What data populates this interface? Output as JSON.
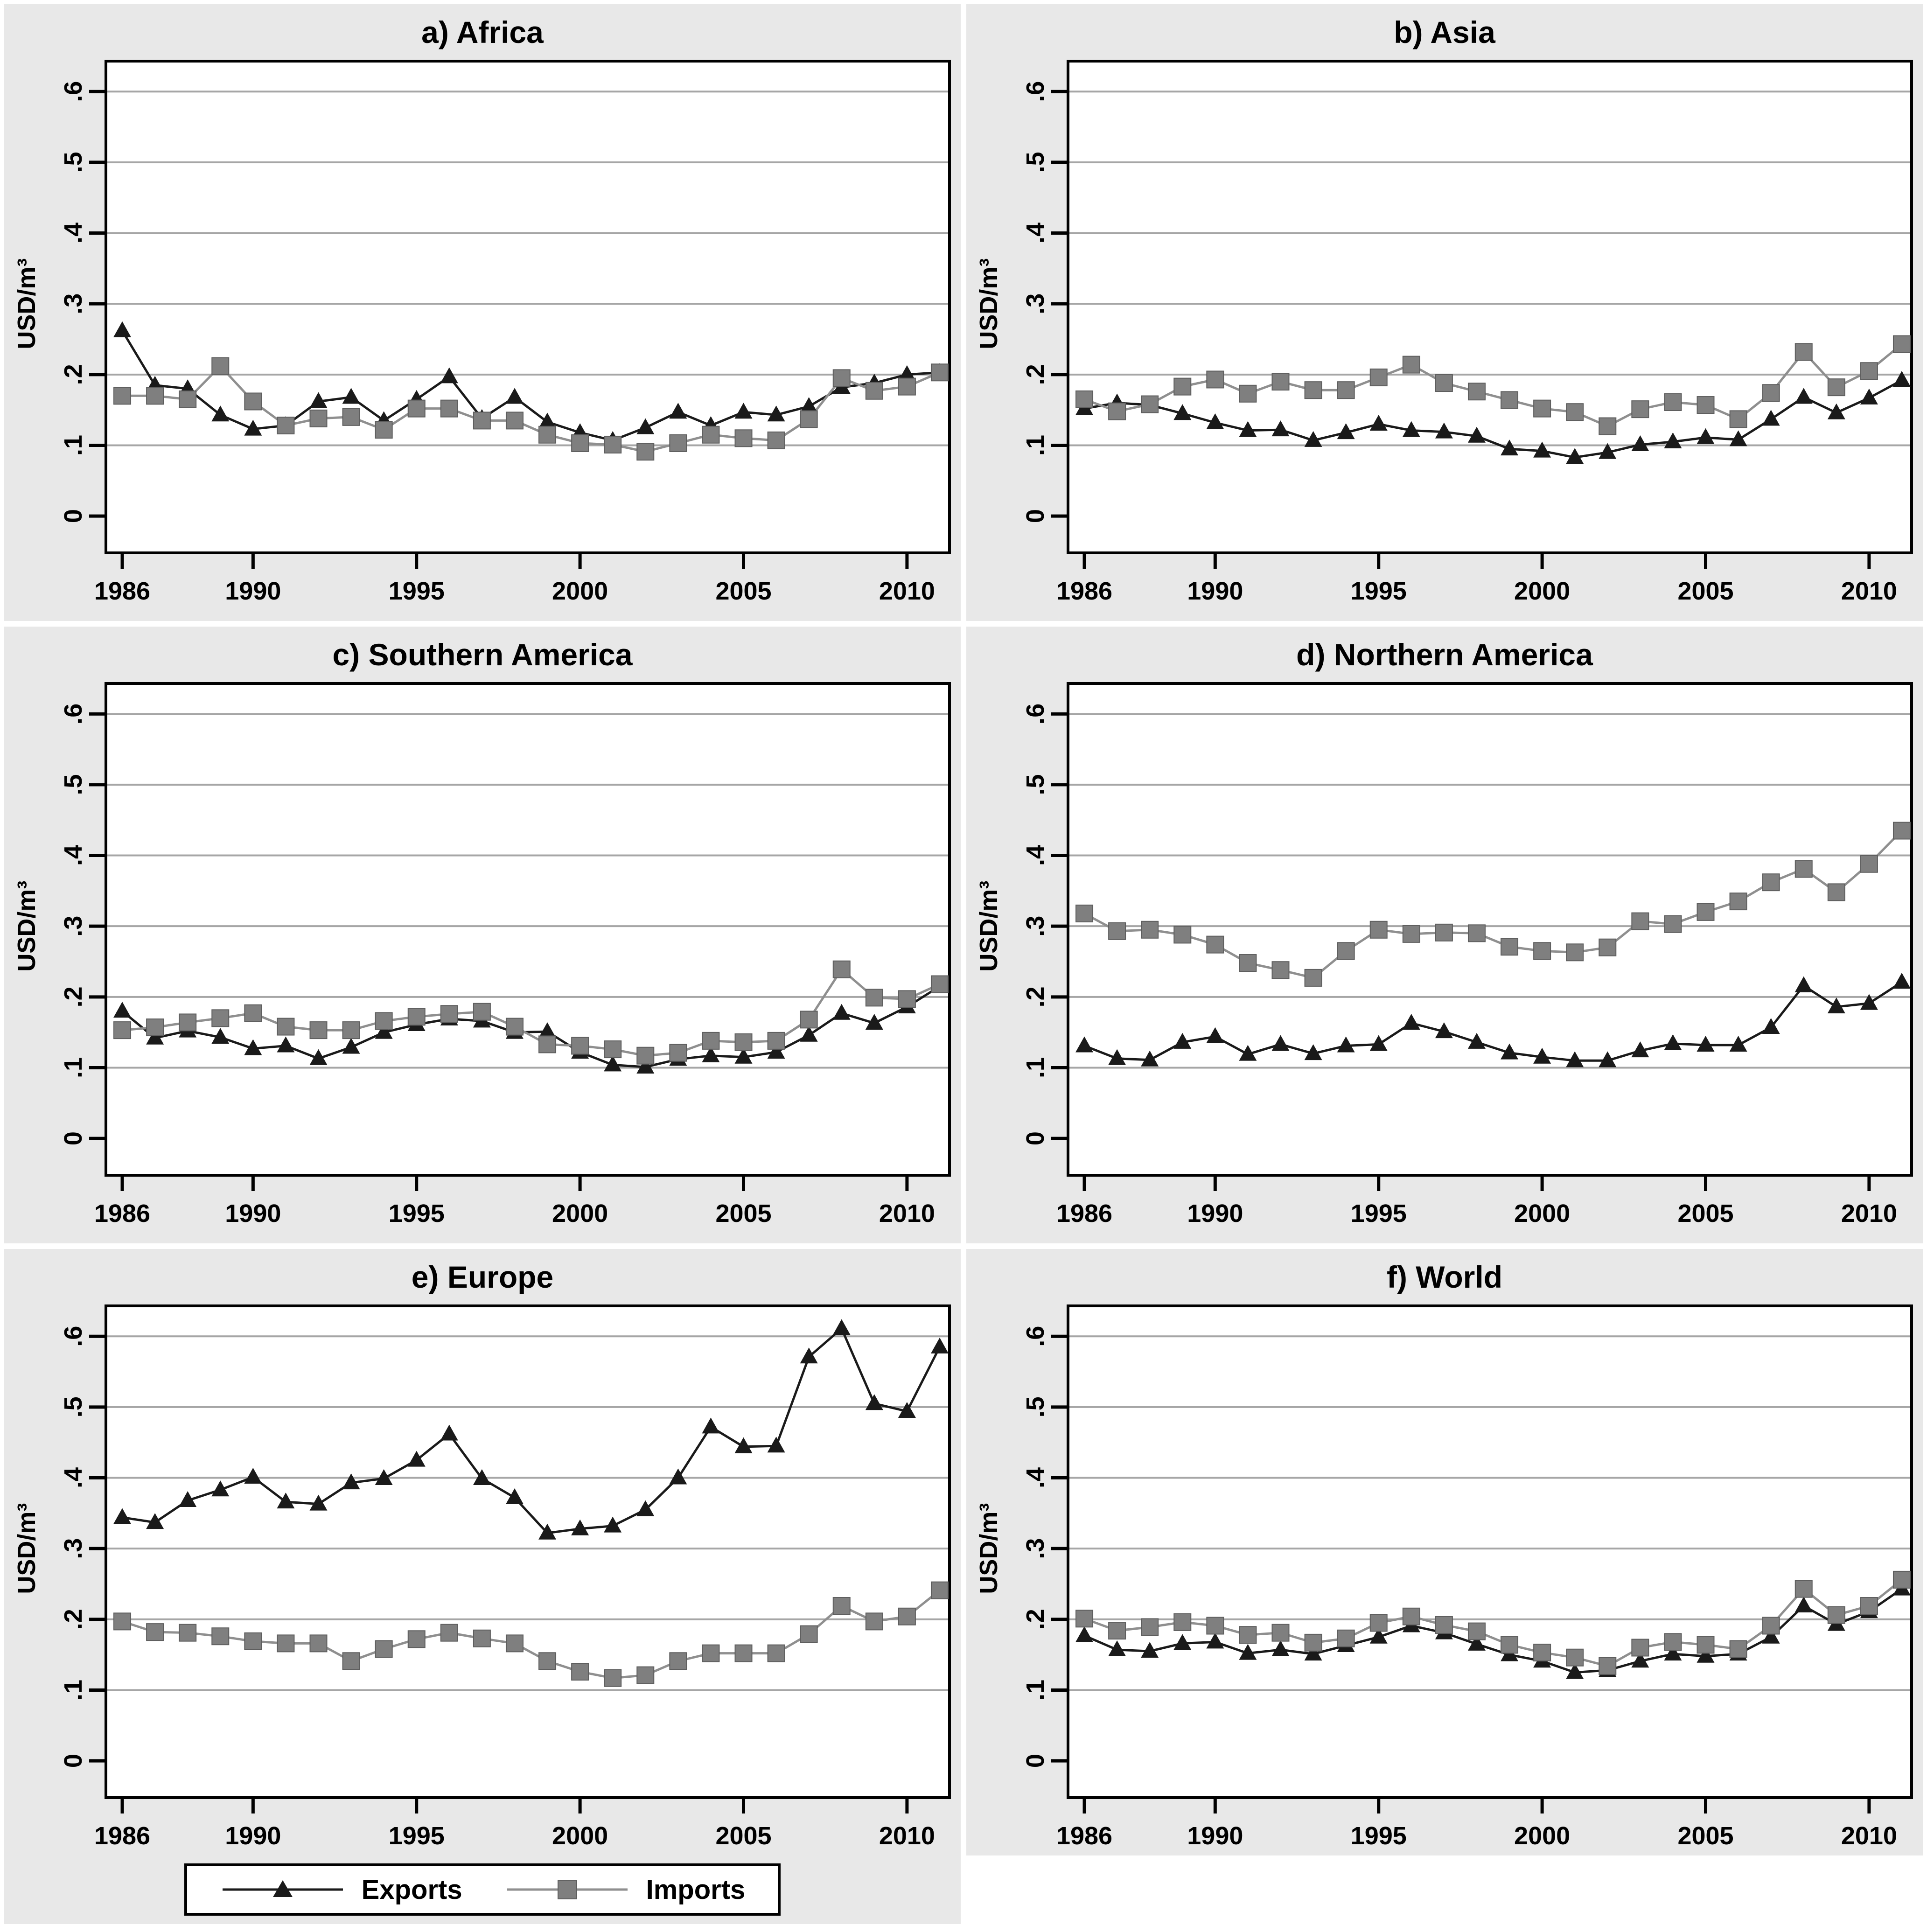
{
  "figure": {
    "ylabel": "USD/m³",
    "yticks": [
      0,
      0.1,
      0.2,
      0.3,
      0.4,
      0.5,
      0.6
    ],
    "ytick_labels": [
      "0",
      ".1",
      ".2",
      ".3",
      ".4",
      ".5",
      ".6"
    ],
    "xticks": [
      1986,
      1990,
      1995,
      2000,
      2005,
      2010
    ],
    "x_range": [
      1986,
      2011
    ],
    "y_range": [
      0,
      0.6
    ],
    "grid": "horizontal-only",
    "legend_position": "bottom-left-panel",
    "colors": {
      "exports": "#1a1a1a",
      "imports_line": "#8f8f8f",
      "imports_marker": "#7f7f7f",
      "grid": "#a6a6a6",
      "frame": "#000000",
      "panel_bg": "#e8e8e8",
      "plot_bg": "#ffffff",
      "text": "#000000"
    }
  },
  "legend": {
    "entries": [
      {
        "label": "Exports",
        "marker": "triangle"
      },
      {
        "label": "Imports",
        "marker": "square"
      }
    ]
  },
  "chart_data": [
    {
      "type": "line",
      "title": "a) Africa",
      "xlabel": "",
      "ylabel": "USD/m³",
      "ylim": [
        0,
        0.6
      ],
      "x": [
        1986,
        1987,
        1988,
        1989,
        1990,
        1991,
        1992,
        1993,
        1994,
        1995,
        1996,
        1997,
        1998,
        1999,
        2000,
        2001,
        2002,
        2003,
        2004,
        2005,
        2006,
        2007,
        2008,
        2009,
        2010,
        2011
      ],
      "series": [
        {
          "name": "Exports",
          "values": [
            0.262,
            0.185,
            0.18,
            0.143,
            0.123,
            0.128,
            0.162,
            0.168,
            0.135,
            0.165,
            0.197,
            0.138,
            0.168,
            0.133,
            0.118,
            0.107,
            0.125,
            0.147,
            0.128,
            0.147,
            0.143,
            0.155,
            0.182,
            0.188,
            0.2,
            0.203
          ]
        },
        {
          "name": "Imports",
          "values": [
            0.17,
            0.17,
            0.165,
            0.212,
            0.162,
            0.128,
            0.138,
            0.14,
            0.122,
            0.152,
            0.152,
            0.135,
            0.135,
            0.115,
            0.103,
            0.101,
            0.091,
            0.103,
            0.115,
            0.11,
            0.107,
            0.137,
            0.195,
            0.177,
            0.183,
            0.203
          ]
        }
      ]
    },
    {
      "type": "line",
      "title": "b) Asia",
      "xlabel": "",
      "ylabel": "USD/m³",
      "ylim": [
        0,
        0.6
      ],
      "x": [
        1986,
        1987,
        1988,
        1989,
        1990,
        1991,
        1992,
        1993,
        1994,
        1995,
        1996,
        1997,
        1998,
        1999,
        2000,
        2001,
        2002,
        2003,
        2004,
        2005,
        2006,
        2007,
        2008,
        2009,
        2010,
        2011
      ],
      "series": [
        {
          "name": "Exports",
          "values": [
            0.152,
            0.16,
            0.157,
            0.145,
            0.132,
            0.121,
            0.122,
            0.107,
            0.118,
            0.13,
            0.121,
            0.119,
            0.113,
            0.095,
            0.092,
            0.083,
            0.09,
            0.101,
            0.105,
            0.111,
            0.108,
            0.137,
            0.168,
            0.146,
            0.167,
            0.192
          ]
        },
        {
          "name": "Imports",
          "values": [
            0.165,
            0.148,
            0.158,
            0.183,
            0.193,
            0.173,
            0.19,
            0.178,
            0.178,
            0.196,
            0.214,
            0.188,
            0.176,
            0.164,
            0.152,
            0.147,
            0.127,
            0.151,
            0.161,
            0.157,
            0.137,
            0.174,
            0.232,
            0.182,
            0.205,
            0.243
          ]
        }
      ]
    },
    {
      "type": "line",
      "title": "c) Southern America",
      "xlabel": "",
      "ylabel": "USD/m³",
      "ylim": [
        0,
        0.6
      ],
      "x": [
        1986,
        1987,
        1988,
        1989,
        1990,
        1991,
        1992,
        1993,
        1994,
        1995,
        1996,
        1997,
        1998,
        1999,
        2000,
        2001,
        2002,
        2003,
        2004,
        2005,
        2006,
        2007,
        2008,
        2009,
        2010,
        2011
      ],
      "series": [
        {
          "name": "Exports",
          "values": [
            0.18,
            0.142,
            0.152,
            0.143,
            0.127,
            0.131,
            0.113,
            0.129,
            0.15,
            0.161,
            0.169,
            0.166,
            0.15,
            0.151,
            0.122,
            0.104,
            0.101,
            0.112,
            0.117,
            0.115,
            0.122,
            0.146,
            0.177,
            0.163,
            0.186,
            0.215
          ]
        },
        {
          "name": "Imports",
          "values": [
            0.153,
            0.157,
            0.164,
            0.17,
            0.177,
            0.158,
            0.153,
            0.153,
            0.166,
            0.172,
            0.176,
            0.179,
            0.158,
            0.133,
            0.131,
            0.126,
            0.117,
            0.121,
            0.138,
            0.136,
            0.138,
            0.168,
            0.239,
            0.199,
            0.197,
            0.218
          ]
        }
      ]
    },
    {
      "type": "line",
      "title": "d) Northern America",
      "xlabel": "",
      "ylabel": "USD/m³",
      "ylim": [
        0,
        0.6
      ],
      "x": [
        1986,
        1987,
        1988,
        1989,
        1990,
        1991,
        1992,
        1993,
        1994,
        1995,
        1996,
        1997,
        1998,
        1999,
        2000,
        2001,
        2002,
        2003,
        2004,
        2005,
        2006,
        2007,
        2008,
        2009,
        2010,
        2011
      ],
      "series": [
        {
          "name": "Exports",
          "values": [
            0.131,
            0.113,
            0.111,
            0.136,
            0.144,
            0.119,
            0.133,
            0.12,
            0.131,
            0.133,
            0.163,
            0.151,
            0.136,
            0.121,
            0.115,
            0.11,
            0.11,
            0.124,
            0.134,
            0.132,
            0.132,
            0.157,
            0.216,
            0.186,
            0.191,
            0.221
          ]
        },
        {
          "name": "Imports",
          "values": [
            0.318,
            0.293,
            0.295,
            0.288,
            0.274,
            0.248,
            0.238,
            0.227,
            0.265,
            0.295,
            0.289,
            0.291,
            0.29,
            0.271,
            0.265,
            0.263,
            0.27,
            0.307,
            0.303,
            0.32,
            0.335,
            0.362,
            0.381,
            0.348,
            0.388,
            0.435
          ]
        }
      ]
    },
    {
      "type": "line",
      "title": "e) Europe",
      "xlabel": "",
      "ylabel": "USD/m³",
      "ylim": [
        0,
        0.6
      ],
      "x": [
        1986,
        1987,
        1988,
        1989,
        1990,
        1991,
        1992,
        1993,
        1994,
        1995,
        1996,
        1997,
        1998,
        1999,
        2000,
        2001,
        2002,
        2003,
        2004,
        2005,
        2006,
        2007,
        2008,
        2009,
        2010,
        2011
      ],
      "series": [
        {
          "name": "Exports",
          "values": [
            0.344,
            0.337,
            0.368,
            0.383,
            0.401,
            0.366,
            0.363,
            0.393,
            0.399,
            0.425,
            0.462,
            0.399,
            0.372,
            0.322,
            0.328,
            0.332,
            0.355,
            0.4,
            0.472,
            0.444,
            0.445,
            0.571,
            0.611,
            0.505,
            0.494,
            0.585
          ]
        },
        {
          "name": "Imports",
          "values": [
            0.197,
            0.182,
            0.181,
            0.176,
            0.169,
            0.166,
            0.166,
            0.141,
            0.158,
            0.172,
            0.181,
            0.173,
            0.166,
            0.141,
            0.126,
            0.117,
            0.121,
            0.141,
            0.152,
            0.152,
            0.152,
            0.179,
            0.219,
            0.197,
            0.204,
            0.241
          ]
        }
      ]
    },
    {
      "type": "line",
      "title": "f) World",
      "xlabel": "",
      "ylabel": "USD/m³",
      "ylim": [
        0,
        0.6
      ],
      "x": [
        1986,
        1987,
        1988,
        1989,
        1990,
        1991,
        1992,
        1993,
        1994,
        1995,
        1996,
        1997,
        1998,
        1999,
        2000,
        2001,
        2002,
        2003,
        2004,
        2005,
        2006,
        2007,
        2008,
        2009,
        2010,
        2011
      ],
      "series": [
        {
          "name": "Exports",
          "values": [
            0.177,
            0.157,
            0.155,
            0.166,
            0.168,
            0.152,
            0.157,
            0.151,
            0.163,
            0.175,
            0.191,
            0.181,
            0.165,
            0.15,
            0.141,
            0.125,
            0.128,
            0.141,
            0.151,
            0.148,
            0.151,
            0.175,
            0.219,
            0.193,
            0.211,
            0.243
          ]
        },
        {
          "name": "Imports",
          "values": [
            0.201,
            0.184,
            0.189,
            0.196,
            0.191,
            0.178,
            0.181,
            0.167,
            0.173,
            0.195,
            0.204,
            0.192,
            0.183,
            0.164,
            0.153,
            0.146,
            0.134,
            0.16,
            0.168,
            0.164,
            0.158,
            0.191,
            0.243,
            0.206,
            0.219,
            0.256
          ]
        }
      ]
    }
  ]
}
